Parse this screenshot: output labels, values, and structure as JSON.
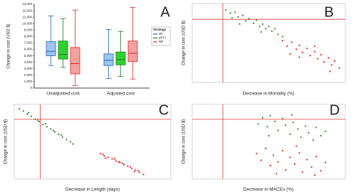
{
  "chart_data": [
    {
      "type": "box",
      "ylabel": "Change in cost (USD $)",
      "panel_label": "A",
      "categories": [
        "Unadjusted cost",
        "Adjusted cost"
      ],
      "ylim": [
        0,
        13000
      ],
      "yticks": [
        0,
        {
          "value": 1000,
          "label": "1,000"
        },
        {
          "value": 2000,
          "label": "2,000"
        },
        {
          "value": 3000,
          "label": "3,000"
        },
        {
          "value": 4000,
          "label": "4,000"
        },
        {
          "value": 5000,
          "label": "5,000"
        },
        {
          "value": 6000,
          "label": "6,000"
        },
        {
          "value": 7000,
          "label": "7,000"
        },
        {
          "value": 8000,
          "label": "8,000"
        },
        {
          "value": 9000,
          "label": "9,000"
        },
        {
          "value": 10000,
          "label": "10,000"
        },
        {
          "value": 11000,
          "label": "11,000"
        },
        {
          "value": 12000,
          "label": "12,000"
        },
        {
          "value": 13000,
          "label": "13,000"
        }
      ],
      "legend_title": "Strategy",
      "legend": "right",
      "series": [
        {
          "name": "JR",
          "color": "#2a62b5",
          "fill": "#9cc4ef",
          "whisker_low": [
            3500,
            1500
          ],
          "q1": [
            5000,
            3500
          ],
          "median": [
            5700,
            4300
          ],
          "q3": [
            7200,
            5300
          ],
          "whisker_high": [
            11200,
            9100
          ]
        },
        {
          "name": "pPCI",
          "color": "#1f7a1f",
          "fill": "#2fd12f",
          "whisker_low": [
            3200,
            1800
          ],
          "q1": [
            4500,
            3600
          ],
          "median": [
            5200,
            4400
          ],
          "q3": [
            7300,
            5600
          ],
          "whisker_high": [
            10800,
            8800
          ]
        },
        {
          "name": "NR",
          "color": "#d92b2b",
          "fill": "#f2a0a0",
          "whisker_low": [
            400,
            1400
          ],
          "q1": [
            2200,
            4100
          ],
          "median": [
            3800,
            5400
          ],
          "q3": [
            6300,
            7300
          ],
          "whisker_high": [
            12100,
            12500
          ]
        }
      ]
    },
    {
      "type": "scatter",
      "panel_label": "B",
      "xlabel": "Decrease in Mortality (%)",
      "ylabel": "Change in cost (USD $)",
      "xlim": [
        -2,
        8
      ],
      "ylim": [
        -8,
        2
      ],
      "crosshair": {
        "x": 0,
        "y": 0,
        "color": "#e03030"
      },
      "series": [
        {
          "color": "#2e8b22",
          "x": [
            0.2,
            0.5,
            0.8,
            1.0,
            1.3,
            1.5,
            1.7,
            2.0,
            2.2,
            2.4,
            2.6,
            2.8,
            3.0,
            3.2,
            3.4,
            3.6,
            1.1,
            0.6,
            2.5,
            3.9
          ],
          "values": [
            1.2,
            0.8,
            0.9,
            0.3,
            0.5,
            -0.2,
            0.1,
            -0.5,
            -0.1,
            -0.9,
            -0.6,
            -1.2,
            -0.9,
            -1.5,
            -1.2,
            -1.9,
            -0.6,
            0.2,
            -1.6,
            -2.2
          ]
        },
        {
          "color": "#e8201a",
          "x": [
            3.9,
            4.2,
            4.5,
            4.8,
            5.0,
            5.2,
            5.5,
            5.7,
            6.0,
            6.2,
            6.4,
            6.6,
            6.9,
            7.1,
            7.3,
            7.6,
            5.0,
            6.0,
            7.0,
            4.4
          ],
          "values": [
            -2.7,
            -3.4,
            -2.9,
            -3.8,
            -3.3,
            -4.2,
            -3.7,
            -4.6,
            -4.1,
            -5.0,
            -4.5,
            -5.4,
            -4.9,
            -5.8,
            -5.3,
            -6.2,
            -4.8,
            -3.4,
            -6.6,
            -4.4
          ]
        }
      ]
    },
    {
      "type": "scatter",
      "panel_label": "C",
      "xlabel": "Decrease in Length (days)",
      "ylabel": "Change in cost (USD $)",
      "xlim": [
        -2,
        10
      ],
      "ylim": [
        -8,
        2
      ],
      "crosshair": {
        "x": 0,
        "y": 0,
        "color": "#e03030"
      },
      "series": [
        {
          "color": "#2e8b22",
          "x": [
            -1.6,
            -1.3,
            -1.0,
            -0.7,
            -0.4,
            -0.1,
            0.2,
            0.5,
            0.8,
            1.1,
            1.4,
            1.7,
            2.0,
            2.3,
            -0.9,
            0.4,
            1.0,
            1.6,
            2.5,
            -0.2
          ],
          "values": [
            1.4,
            1.1,
            0.7,
            0.4,
            0.0,
            -0.3,
            -0.7,
            -1.0,
            -1.3,
            -1.7,
            -2.0,
            -2.4,
            -2.7,
            -3.0,
            0.9,
            -0.6,
            -1.5,
            -2.1,
            -3.3,
            -0.1
          ]
        },
        {
          "color": "#e8201a",
          "x": [
            4.6,
            4.9,
            5.2,
            5.5,
            5.8,
            6.1,
            6.4,
            6.7,
            7.0,
            7.3,
            7.6,
            7.9,
            5.0,
            5.7,
            6.3,
            6.9,
            7.5,
            4.8,
            6.0,
            7.2
          ],
          "values": [
            -4.6,
            -4.9,
            -5.1,
            -5.3,
            -5.6,
            -5.8,
            -6.1,
            -6.3,
            -6.6,
            -6.8,
            -7.1,
            -7.4,
            -5.2,
            -5.3,
            -5.9,
            -6.4,
            -6.9,
            -4.7,
            -5.7,
            -7.0
          ]
        }
      ]
    },
    {
      "type": "scatter",
      "panel_label": "D",
      "xlabel": "Decrease in MACEs (%)",
      "ylabel": "Change in cost (USD $)",
      "xlim": [
        -2,
        8
      ],
      "ylim": [
        -8,
        2
      ],
      "crosshair": {
        "x": 0,
        "y": 0,
        "color": "#e03030"
      },
      "series": [
        {
          "color": "#2e8b22",
          "x": [
            2.3,
            2.6,
            2.9,
            3.1,
            3.4,
            3.6,
            3.9,
            4.1,
            4.4,
            4.6,
            4.9,
            5.1,
            5.4,
            5.6,
            5.9,
            6.1,
            6.4,
            6.7,
            3.0,
            4.5
          ],
          "values": [
            -0.6,
            0.2,
            -1.0,
            0.5,
            -0.3,
            -1.5,
            0.1,
            -0.8,
            -2.0,
            -0.4,
            -1.3,
            -2.4,
            -0.9,
            -1.8,
            -2.8,
            -1.1,
            -2.2,
            -1.6,
            -2.2,
            0.6
          ]
        },
        {
          "color": "#e8201a",
          "x": [
            2.2,
            2.5,
            2.8,
            3.1,
            3.3,
            3.6,
            3.9,
            4.1,
            4.4,
            4.7,
            5.0,
            5.2,
            5.5,
            5.8,
            6.1,
            6.4,
            6.7,
            3.5,
            4.8,
            6.0
          ],
          "values": [
            -4.6,
            -5.5,
            -3.9,
            -6.2,
            -4.8,
            -5.7,
            -4.2,
            -6.8,
            -5.1,
            -6.0,
            -4.5,
            -7.1,
            -5.4,
            -6.4,
            -5.0,
            -6.9,
            -5.8,
            -7.3,
            -3.6,
            -7.5
          ]
        }
      ]
    }
  ]
}
